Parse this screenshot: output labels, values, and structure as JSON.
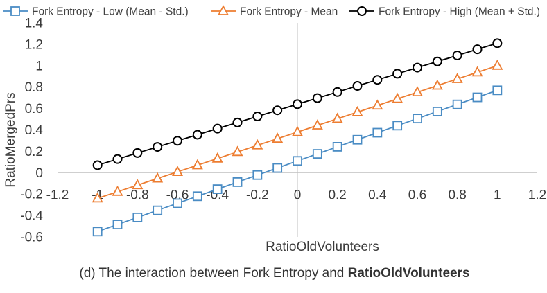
{
  "chart_data": {
    "type": "line",
    "x": [
      -1,
      -0.9,
      -0.8,
      -0.7,
      -0.6,
      -0.5,
      -0.4,
      -0.3,
      -0.2,
      -0.1,
      0,
      0.1,
      0.2,
      0.3,
      0.4,
      0.5,
      0.6,
      0.7,
      0.8,
      0.9,
      1
    ],
    "series": [
      {
        "name": "Fork Entropy - Low (Mean - Std.)",
        "marker": "square",
        "color": "#4a8cc4",
        "values": [
          -0.55,
          -0.484,
          -0.418,
          -0.352,
          -0.286,
          -0.22,
          -0.154,
          -0.088,
          -0.022,
          0.044,
          0.11,
          0.176,
          0.242,
          0.308,
          0.374,
          0.44,
          0.506,
          0.572,
          0.638,
          0.704,
          0.77
        ]
      },
      {
        "name": "Fork Entropy - Mean",
        "marker": "triangle",
        "color": "#ed7d31",
        "values": [
          -0.24,
          -0.178,
          -0.116,
          -0.054,
          0.008,
          0.07,
          0.132,
          0.194,
          0.256,
          0.318,
          0.38,
          0.442,
          0.504,
          0.566,
          0.628,
          0.69,
          0.752,
          0.814,
          0.876,
          0.938,
          1.0
        ]
      },
      {
        "name": "Fork Entropy - High (Mean + Std.)",
        "marker": "circle",
        "color": "#000000",
        "values": [
          0.07,
          0.127,
          0.184,
          0.241,
          0.298,
          0.355,
          0.412,
          0.469,
          0.526,
          0.583,
          0.64,
          0.697,
          0.754,
          0.811,
          0.868,
          0.925,
          0.982,
          1.039,
          1.096,
          1.153,
          1.21
        ]
      }
    ],
    "xlabel": "RatioOldVolunteers",
    "ylabel": "RatioMergedPrs",
    "xlim": [
      -1.2,
      1.2
    ],
    "ylim": [
      -0.6,
      1.4
    ],
    "x_ticks": [
      "-1.2",
      "-1",
      "-0.8",
      "-0.6",
      "-0.4",
      "-0.2",
      "0",
      "0.2",
      "0.4",
      "0.6",
      "0.8",
      "1",
      "1.2"
    ],
    "y_ticks": [
      "-0.6",
      "-0.4",
      "-0.2",
      "0",
      "0.2",
      "0.4",
      "0.6",
      "0.8",
      "1",
      "1.2",
      "1.4"
    ],
    "grid": false,
    "legend_position": "top"
  },
  "caption": {
    "prefix": "(d) The interaction between Fork Entropy and ",
    "emphasis": "RatioOldVolunteers"
  }
}
